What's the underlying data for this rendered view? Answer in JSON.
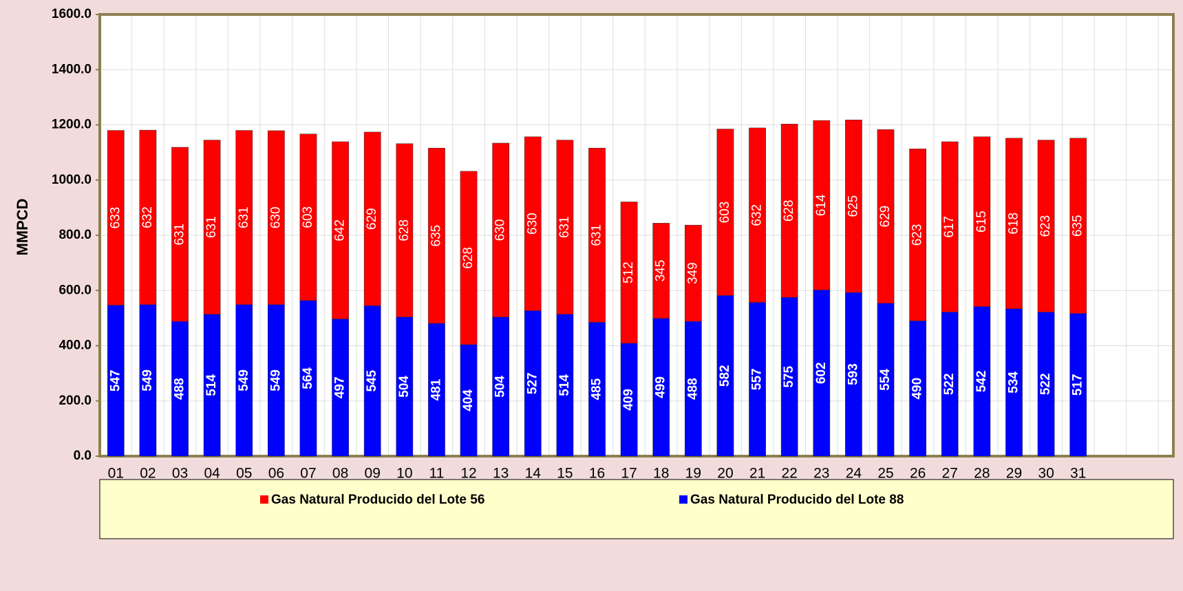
{
  "chart_data": {
    "type": "stacked_bar",
    "y_label": "MMPCD",
    "categories": [
      "01",
      "02",
      "03",
      "04",
      "05",
      "06",
      "07",
      "08",
      "09",
      "10",
      "11",
      "12",
      "13",
      "14",
      "15",
      "16",
      "17",
      "18",
      "19",
      "20",
      "21",
      "22",
      "23",
      "24",
      "25",
      "26",
      "27",
      "28",
      "29",
      "30",
      "31"
    ],
    "series": [
      {
        "name": "Gas Natural Producido del Lote 56",
        "color": "#ff0000",
        "values": [
          633,
          632,
          631,
          631,
          631,
          630,
          603,
          642,
          629,
          628,
          635,
          628,
          630,
          630,
          631,
          631,
          512,
          345,
          349,
          603,
          632,
          628,
          614,
          625,
          629,
          623,
          617,
          615,
          618,
          623,
          635
        ]
      },
      {
        "name": "Gas Natural Producido del Lote 88",
        "color": "#0000ff",
        "values": [
          547,
          549,
          488,
          514,
          549,
          549,
          564,
          497,
          545,
          504,
          481,
          404,
          504,
          527,
          514,
          485,
          409,
          499,
          488,
          582,
          557,
          575,
          602,
          593,
          554,
          490,
          522,
          542,
          534,
          522,
          517
        ]
      }
    ],
    "ylim": [
      0,
      1600
    ],
    "yticks": [
      {
        "value": 0,
        "label": "0.0"
      },
      {
        "value": 200,
        "label": "200.0"
      },
      {
        "value": 400,
        "label": "400.0"
      },
      {
        "value": 600,
        "label": "600.0"
      },
      {
        "value": 800,
        "label": "800.0"
      },
      {
        "value": 1000,
        "label": "1000.0"
      },
      {
        "value": 1200,
        "label": "1200.0"
      },
      {
        "value": 1400,
        "label": "1400.0"
      },
      {
        "value": 1600,
        "label": "1600.0"
      }
    ],
    "grid": true
  }
}
